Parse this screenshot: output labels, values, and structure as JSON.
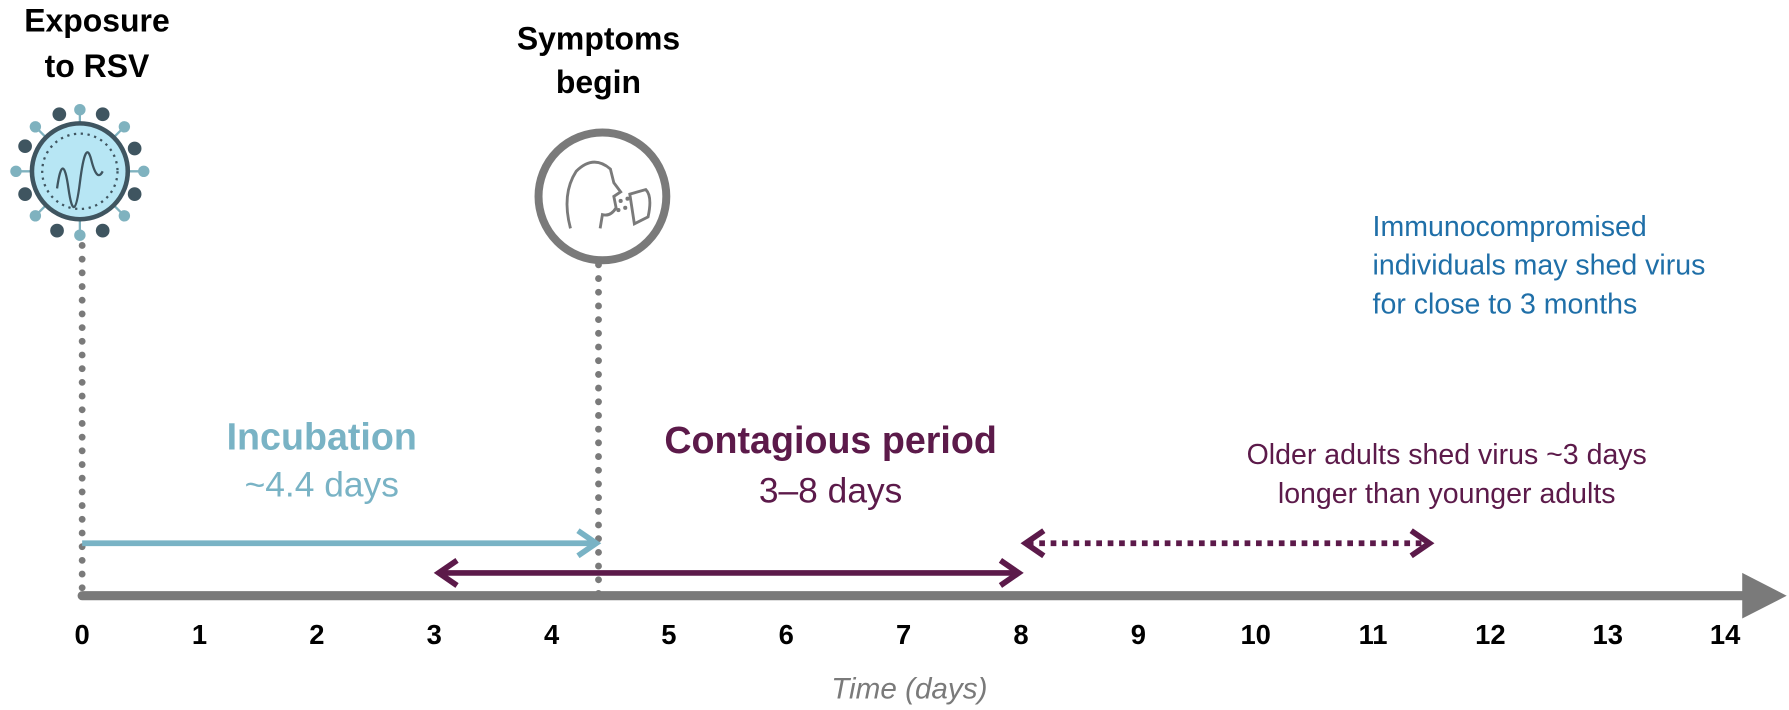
{
  "axis": {
    "label": "Time (days)",
    "xlim": [
      0,
      14
    ],
    "ticks": [
      0,
      1,
      2,
      3,
      4,
      5,
      6,
      7,
      8,
      9,
      10,
      11,
      12,
      13,
      14
    ]
  },
  "events": [
    {
      "label": [
        "Exposure",
        "to RSV"
      ],
      "x": 0
    },
    {
      "label": [
        "Symptoms",
        "begin"
      ],
      "x": 4.4
    }
  ],
  "periods": [
    {
      "title": "Incubation",
      "subtitle": "~4.4 days",
      "start": 0,
      "end": 4.4,
      "color": "#79b3c5"
    },
    {
      "title": "Contagious period",
      "subtitle": "3–8 days",
      "start": 3,
      "end": 8,
      "color": "#5c1a4a"
    },
    {
      "note": [
        "Older adults shed virus ~3 days",
        "longer than younger adults"
      ],
      "start": 8,
      "end": 11.5,
      "color": "#5c1a4a"
    }
  ],
  "note": {
    "lines": [
      "Immunocompromised",
      "individuals may shed virus",
      "for close to 3 months"
    ],
    "color": "#1f6fa8"
  }
}
